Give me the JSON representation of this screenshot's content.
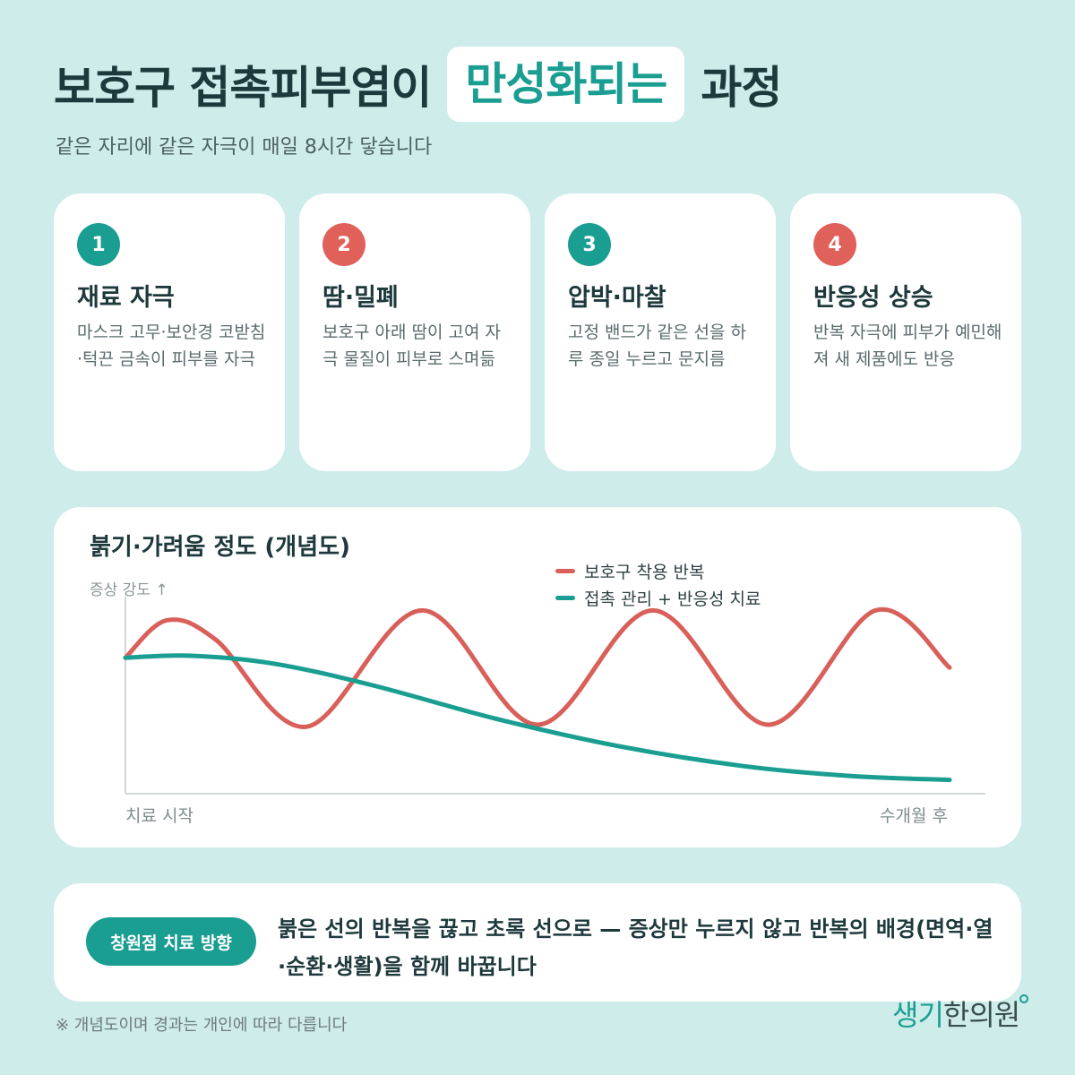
{
  "header": {
    "title_before": "보호구 접촉피부염이",
    "title_highlight": "만성화되는",
    "title_after": "과정",
    "subtitle": "같은 자리에 같은 자극이 매일 8시간 닿습니다"
  },
  "steps": [
    {
      "num": "1",
      "title": "재료 자극",
      "desc": "마스크 고무·보안경 코받침·턱끈 금속이 피부를 자극",
      "badge_color": "#1a9e92"
    },
    {
      "num": "2",
      "title": "땀·밀폐",
      "desc": "보호구 아래 땀이 고여 자극 물질이 피부로 스며듦",
      "badge_color": "#e0605a"
    },
    {
      "num": "3",
      "title": "압박·마찰",
      "desc": "고정 밴드가 같은 선을 하루 종일 누르고 문지름",
      "badge_color": "#1a9e92"
    },
    {
      "num": "4",
      "title": "반응성 상승",
      "desc": "반복 자극에 피부가 예민해져 새 제품에도 반응",
      "badge_color": "#e0605a"
    }
  ],
  "chart": {
    "title": "붉기·가려움 정도 (개념도)",
    "ylabel": "증상 강도 ↑",
    "x_start": "치료 시작",
    "x_end": "수개월 후"
  },
  "chart_data": {
    "type": "line",
    "title": "붉기·가려움 정도 (개념도)",
    "ylabel": "증상 강도 ↑",
    "xlabel": "",
    "x_tick_labels": [
      "치료 시작",
      "수개월 후"
    ],
    "legend_position": "top-right",
    "grid": false,
    "xlim": [
      0,
      1
    ],
    "ylim": [
      0,
      1
    ],
    "series": [
      {
        "name": "보호구 착용 반복",
        "color": "#d9605a",
        "x": [
          0,
          0.05,
          0.11,
          0.22,
          0.36,
          0.5,
          0.64,
          0.78,
          0.91,
          1.0
        ],
        "y": [
          0.69,
          0.88,
          0.78,
          0.34,
          0.93,
          0.35,
          0.93,
          0.35,
          0.93,
          0.64
        ]
      },
      {
        "name": "접촉 관리 + 반응성 치료",
        "color": "#1a9e92",
        "x": [
          0,
          0.08,
          0.18,
          0.3,
          0.45,
          0.6,
          0.75,
          0.88,
          1.0
        ],
        "y": [
          0.69,
          0.7,
          0.66,
          0.55,
          0.38,
          0.24,
          0.14,
          0.09,
          0.07
        ]
      }
    ]
  },
  "bottom": {
    "pill_label": "창원점 치료 방향",
    "message": "붉은 선의 반복을 끊고 초록 선으로 — 증상만 누르지 않고 반복의 배경(면역·열·순환·생활)을 함께 바꿉니다"
  },
  "footnote": "※ 개념도이며 경과는 개인에 따라 다릅니다",
  "logo": {
    "part1": "생기",
    "part2": "한의원"
  }
}
